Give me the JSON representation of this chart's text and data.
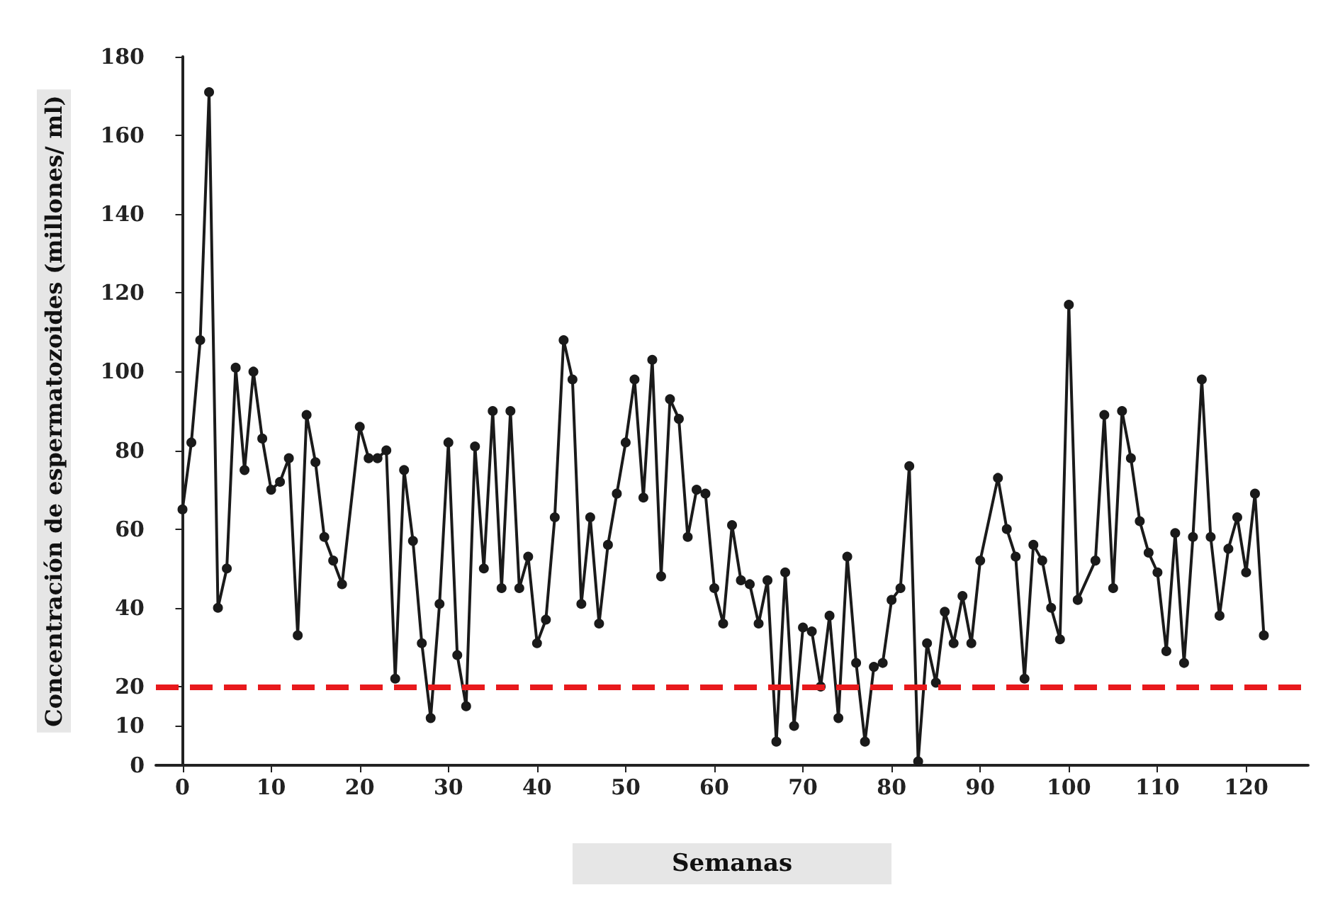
{
  "chart_data": {
    "type": "line",
    "xlabel": "Semanas",
    "ylabel": "Concentración de espermatozoides (millones/ ml)",
    "x": [
      0,
      1,
      2,
      3,
      4,
      5,
      6,
      7,
      8,
      9,
      10,
      11,
      12,
      13,
      14,
      15,
      16,
      17,
      18,
      20,
      21,
      22,
      23,
      24,
      25,
      26,
      27,
      28,
      29,
      30,
      31,
      32,
      33,
      34,
      35,
      36,
      37,
      38,
      39,
      40,
      41,
      42,
      43,
      44,
      45,
      46,
      47,
      48,
      49,
      50,
      51,
      52,
      53,
      54,
      55,
      56,
      57,
      58,
      59,
      60,
      61,
      62,
      63,
      64,
      65,
      66,
      67,
      68,
      69,
      70,
      71,
      72,
      73,
      74,
      75,
      76,
      77,
      78,
      79,
      80,
      81,
      82,
      83,
      84,
      85,
      86,
      87,
      88,
      89,
      90,
      92,
      93,
      94,
      95,
      96,
      97,
      98,
      99,
      100,
      101,
      103,
      104,
      105,
      106,
      107,
      108,
      109,
      110,
      111,
      112,
      113,
      114,
      115,
      116,
      117,
      118,
      119,
      120,
      121,
      122
    ],
    "series": [
      {
        "color": "#1a1a1a",
        "values": [
          65,
          82,
          108,
          171,
          40,
          50,
          101,
          75,
          100,
          83,
          70,
          72,
          78,
          33,
          89,
          77,
          58,
          52,
          46,
          86,
          78,
          78,
          80,
          22,
          75,
          57,
          31,
          12,
          41,
          82,
          28,
          15,
          81,
          50,
          90,
          45,
          90,
          45,
          53,
          31,
          37,
          63,
          108,
          98,
          41,
          63,
          36,
          56,
          69,
          82,
          98,
          68,
          103,
          48,
          93,
          88,
          58,
          70,
          69,
          45,
          36,
          61,
          47,
          46,
          36,
          47,
          6,
          49,
          10,
          35,
          34,
          20,
          38,
          12,
          53,
          26,
          6,
          25,
          26,
          42,
          45,
          76,
          1,
          31,
          21,
          39,
          31,
          43,
          31,
          52,
          73,
          60,
          53,
          22,
          56,
          52,
          40,
          32,
          117,
          42,
          52,
          89,
          45,
          90,
          78,
          62,
          54,
          49,
          29,
          59,
          26,
          58,
          98,
          58,
          38,
          55,
          63,
          49,
          69,
          33
        ]
      }
    ],
    "xlim": [
      -3,
      127
    ],
    "xticks": [
      0,
      10,
      20,
      30,
      40,
      50,
      60,
      70,
      80,
      90,
      100,
      110,
      120
    ],
    "ylim": [
      0,
      180
    ],
    "yticks": [
      0,
      10,
      20,
      40,
      60,
      80,
      100,
      120,
      140,
      160,
      180
    ],
    "ref_lines": [
      {
        "axis": "y",
        "value": 20,
        "color": "#e8191c",
        "line_style": "dashed"
      }
    ],
    "marker": "circle",
    "line_style": "solid"
  }
}
